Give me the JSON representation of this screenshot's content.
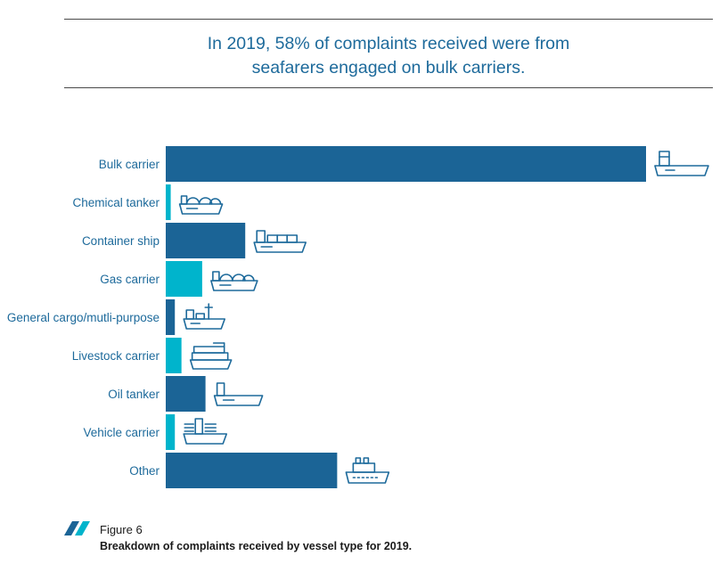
{
  "headline": {
    "line1": "In 2019, 58% of complaints received were from",
    "line2": "seafarers engaged on bulk carriers."
  },
  "colors": {
    "dark_bar": "#1b6496",
    "light_bar": "#00b4cc",
    "text": "#1d6a9b"
  },
  "chart_data": {
    "type": "bar",
    "orientation": "horizontal",
    "categories": [
      "Bulk carrier",
      "Chemical tanker",
      "Container ship",
      "Gas carrier",
      "General cargo/mutli-purpose",
      "Livestock carrier",
      "Oil tanker",
      "Vehicle carrier",
      "Other"
    ],
    "values": [
      58,
      0.6,
      9.6,
      4.4,
      1.1,
      1.9,
      4.8,
      1.1,
      20.7
    ],
    "unit": "%",
    "bar_colors": [
      "#1b6496",
      "#00b4cc",
      "#1b6496",
      "#00b4cc",
      "#1b6496",
      "#00b4cc",
      "#1b6496",
      "#00b4cc",
      "#1b6496"
    ],
    "icons": [
      "bulk-carrier-icon",
      "chemical-tanker-icon",
      "container-ship-icon",
      "gas-carrier-icon",
      "general-cargo-icon",
      "livestock-carrier-icon",
      "oil-tanker-icon",
      "vehicle-carrier-icon",
      "other-ship-icon"
    ],
    "xlim": [
      0,
      58
    ],
    "axes_visible": false,
    "grid": false
  },
  "figure": {
    "number": "Figure 6",
    "caption": "Breakdown of complaints received by vessel type for 2019."
  }
}
